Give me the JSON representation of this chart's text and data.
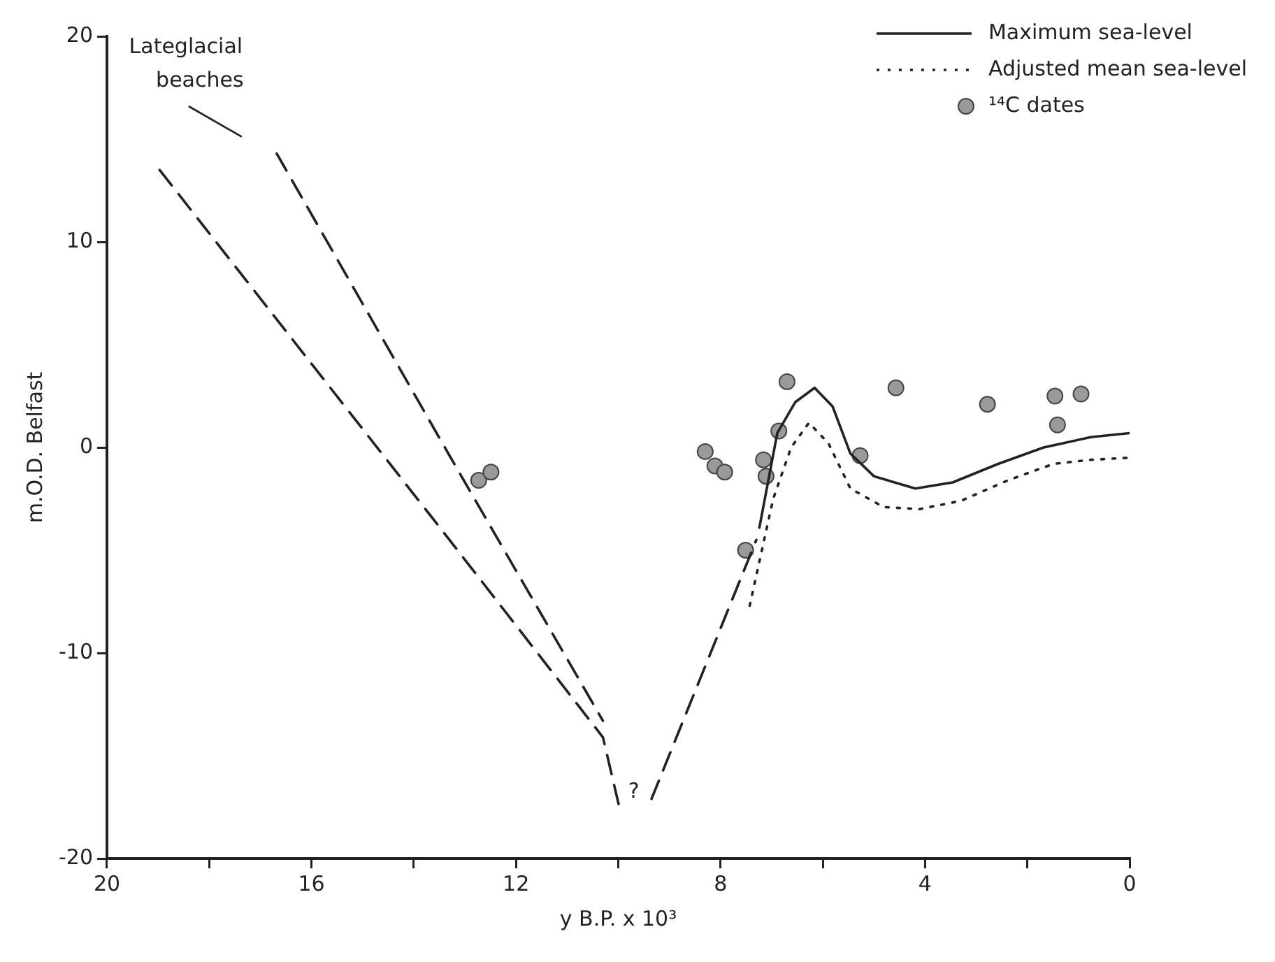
{
  "chart_data": {
    "type": "line",
    "xlabel": "y B.P. x 10³",
    "ylabel": "m.O.D. Belfast",
    "xlim": [
      20,
      0
    ],
    "xticks": [
      20,
      {
        "value": 18,
        "label": null
      },
      16,
      {
        "value": 14,
        "label": null
      },
      12,
      {
        "value": 10,
        "label": null
      },
      8,
      {
        "value": 6,
        "label": null
      },
      4,
      {
        "value": 2,
        "label": null
      },
      0
    ],
    "ylim": [
      -20,
      20
    ],
    "yticks": [
      -20,
      -10,
      0,
      10,
      20
    ],
    "grid": false,
    "legend": "top right",
    "series": [
      {
        "color": "#222222",
        "line_style": "dashed",
        "marker": "none",
        "x": [
          16.68,
          13.3,
          10.3
        ],
        "values": [
          14.3,
          -0.4,
          -13.3
        ]
      },
      {
        "color": "#222222",
        "line_style": "dashed",
        "marker": "none",
        "x": [
          18.97,
          15.0,
          13.3,
          10.3,
          9.97,
          9.66,
          9.35,
          7.3
        ],
        "values": [
          13.5,
          0.9,
          -4.5,
          -14.1,
          -17.6,
          null,
          -17.1,
          -4.5
        ]
      },
      {
        "name": "Maximum sea-level",
        "color": "#222222",
        "line_style": "solid",
        "marker": "none",
        "x": [
          7.24,
          6.89,
          6.54,
          6.16,
          5.81,
          5.46,
          5.0,
          4.19,
          3.46,
          2.57,
          1.68,
          0.76,
          0.0
        ],
        "values": [
          -3.9,
          0.7,
          2.2,
          2.9,
          2.0,
          -0.3,
          -1.4,
          -2.0,
          -1.7,
          -0.8,
          0.0,
          0.5,
          0.7
        ]
      },
      {
        "name": "Adjusted mean sea-level",
        "color": "#222222",
        "line_style": "dotted",
        "marker": "none",
        "x": [
          7.43,
          6.97,
          6.62,
          6.27,
          5.89,
          5.46,
          4.81,
          4.11,
          3.3,
          2.38,
          1.49,
          0.76,
          0.0
        ],
        "values": [
          -7.7,
          -2.5,
          0.0,
          1.2,
          0.2,
          -2.0,
          -2.9,
          -3.0,
          -2.6,
          -1.6,
          -0.8,
          -0.6,
          -0.5
        ]
      },
      {
        "type": "scatter",
        "name": "¹⁴C dates",
        "color": "#9a9a9a",
        "marker": "circle",
        "x": [
          12.73,
          12.49,
          8.3,
          8.11,
          7.92,
          7.16,
          7.11,
          6.86,
          6.7,
          7.51,
          5.27,
          4.57,
          2.78,
          1.46,
          0.95,
          1.41
        ],
        "values": [
          -1.6,
          -1.2,
          -0.2,
          -0.9,
          -1.2,
          -0.6,
          -1.4,
          0.8,
          3.2,
          -5.0,
          -0.4,
          2.9,
          2.1,
          2.5,
          2.6,
          1.1
        ]
      }
    ],
    "annotations": [
      "Lateglacial beaches",
      "?"
    ]
  }
}
